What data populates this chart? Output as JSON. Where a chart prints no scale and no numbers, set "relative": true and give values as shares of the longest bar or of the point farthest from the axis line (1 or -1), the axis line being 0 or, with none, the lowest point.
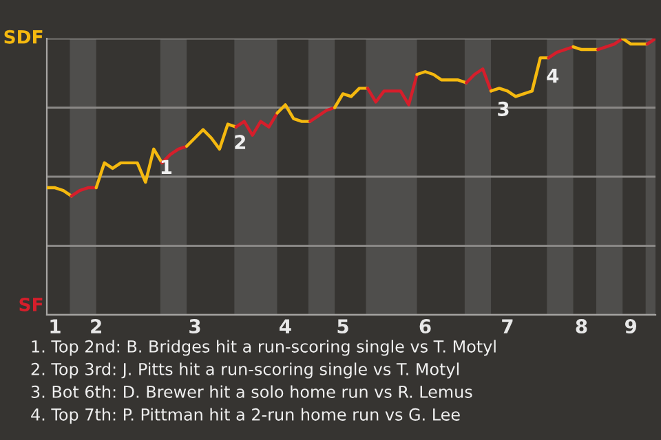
{
  "chart_data": {
    "type": "line",
    "relative": true,
    "legend": false,
    "categories": [
      null,
      "1",
      null,
      null,
      null,
      null,
      "2",
      null,
      null,
      null,
      null,
      null,
      null,
      null,
      null,
      null,
      null,
      null,
      "3",
      null,
      null,
      null,
      null,
      null,
      null,
      null,
      null,
      null,
      null,
      "4",
      null,
      null,
      null,
      null,
      null,
      null,
      "5",
      null,
      null,
      null,
      null,
      null,
      null,
      null,
      null,
      null,
      "6",
      null,
      null,
      null,
      null,
      null,
      null,
      null,
      null,
      null,
      "7",
      null,
      null,
      null,
      null,
      null,
      null,
      null,
      null,
      "8",
      null,
      null,
      null,
      null,
      null,
      "9",
      null,
      null,
      null
    ],
    "series": [
      {
        "name": "SDF",
        "color": "#f5b90f",
        "values": [
          0.46,
          0.46,
          0.45,
          0.43,
          null,
          null,
          null,
          null,
          null,
          null,
          null,
          null,
          null,
          null,
          null,
          null,
          null,
          null,
          null,
          null,
          null,
          null,
          null,
          null,
          null,
          null,
          null,
          null,
          null,
          null,
          null,
          null,
          null,
          null,
          null,
          null,
          null,
          null,
          null,
          null,
          null,
          null,
          null,
          null,
          null,
          null,
          null,
          null,
          null,
          null,
          null,
          null,
          null,
          null,
          null,
          null,
          null,
          null,
          null,
          null,
          null,
          null,
          null,
          null,
          null,
          null,
          null,
          null,
          null,
          null,
          null,
          null,
          null,
          null,
          null
        ]
      },
      {
        "name": "SF",
        "color": "#d61e2b",
        "values": [
          null,
          null,
          null,
          0.43,
          0.45,
          0.46,
          0.46,
          null,
          null,
          null,
          null,
          null,
          null,
          null,
          null,
          null,
          null,
          null,
          null,
          null,
          null,
          null,
          null,
          null,
          null,
          null,
          null,
          null,
          null,
          null,
          null,
          null,
          null,
          null,
          null,
          null,
          null,
          null,
          null,
          null,
          null,
          null,
          null,
          null,
          null,
          null,
          null,
          null,
          null,
          null,
          null,
          null,
          null,
          null,
          null,
          null,
          null,
          null,
          null,
          null,
          null,
          null,
          null,
          null,
          null,
          null,
          null,
          null,
          null,
          null,
          null,
          null,
          null,
          null,
          null
        ]
      },
      {
        "color": "#f5b90f",
        "values": [
          null,
          null,
          null,
          null,
          null,
          null,
          0.46,
          0.55,
          0.53,
          0.55,
          0.55,
          0.55,
          0.48,
          0.6,
          0.55,
          null,
          null,
          null,
          null,
          null,
          null,
          null,
          null,
          null,
          null,
          null,
          null,
          null,
          null,
          null,
          null,
          null,
          null,
          null,
          null,
          null,
          null,
          null,
          null,
          null,
          null,
          null,
          null,
          null,
          null,
          null,
          null,
          null,
          null,
          null,
          null,
          null,
          null,
          null,
          null,
          null,
          null,
          null,
          null,
          null,
          null,
          null,
          null,
          null,
          null,
          null,
          null,
          null,
          null,
          null,
          null,
          null,
          null,
          null,
          null
        ]
      },
      {
        "color": "#d61e2b",
        "values": [
          null,
          null,
          null,
          null,
          null,
          null,
          null,
          null,
          null,
          null,
          null,
          null,
          null,
          null,
          0.55,
          0.58,
          0.6,
          0.61,
          null,
          null,
          null,
          null,
          null,
          null,
          null,
          null,
          null,
          null,
          null,
          null,
          null,
          null,
          null,
          null,
          null,
          null,
          null,
          null,
          null,
          null,
          null,
          null,
          null,
          null,
          null,
          null,
          null,
          null,
          null,
          null,
          null,
          null,
          null,
          null,
          null,
          null,
          null,
          null,
          null,
          null,
          null,
          null,
          null,
          null,
          null,
          null,
          null,
          null,
          null,
          null,
          null,
          null,
          null,
          null,
          null
        ]
      },
      {
        "color": "#f5b90f",
        "values": [
          null,
          null,
          null,
          null,
          null,
          null,
          null,
          null,
          null,
          null,
          null,
          null,
          null,
          null,
          null,
          null,
          null,
          0.61,
          0.64,
          0.67,
          0.64,
          0.6,
          0.69,
          0.68,
          null,
          null,
          null,
          null,
          null,
          null,
          null,
          null,
          null,
          null,
          null,
          null,
          null,
          null,
          null,
          null,
          null,
          null,
          null,
          null,
          null,
          null,
          null,
          null,
          null,
          null,
          null,
          null,
          null,
          null,
          null,
          null,
          null,
          null,
          null,
          null,
          null,
          null,
          null,
          null,
          null,
          null,
          null,
          null,
          null,
          null,
          null,
          null,
          null,
          null,
          null
        ]
      },
      {
        "color": "#d61e2b",
        "values": [
          null,
          null,
          null,
          null,
          null,
          null,
          null,
          null,
          null,
          null,
          null,
          null,
          null,
          null,
          null,
          null,
          null,
          null,
          null,
          null,
          null,
          null,
          null,
          0.68,
          0.7,
          0.65,
          0.7,
          0.68,
          0.73,
          null,
          null,
          null,
          null,
          null,
          null,
          null,
          null,
          null,
          null,
          null,
          null,
          null,
          null,
          null,
          null,
          null,
          null,
          null,
          null,
          null,
          null,
          null,
          null,
          null,
          null,
          null,
          null,
          null,
          null,
          null,
          null,
          null,
          null,
          null,
          null,
          null,
          null,
          null,
          null,
          null,
          null,
          null,
          null,
          null,
          null
        ]
      },
      {
        "color": "#f5b90f",
        "values": [
          null,
          null,
          null,
          null,
          null,
          null,
          null,
          null,
          null,
          null,
          null,
          null,
          null,
          null,
          null,
          null,
          null,
          null,
          null,
          null,
          null,
          null,
          null,
          null,
          null,
          null,
          null,
          null,
          0.73,
          0.76,
          0.71,
          0.7,
          0.7,
          null,
          null,
          null,
          null,
          null,
          null,
          null,
          null,
          null,
          null,
          null,
          null,
          null,
          null,
          null,
          null,
          null,
          null,
          null,
          null,
          null,
          null,
          null,
          null,
          null,
          null,
          null,
          null,
          null,
          null,
          null,
          null,
          null,
          null,
          null,
          null,
          null,
          null,
          null,
          null,
          null,
          null
        ]
      },
      {
        "color": "#d61e2b",
        "values": [
          null,
          null,
          null,
          null,
          null,
          null,
          null,
          null,
          null,
          null,
          null,
          null,
          null,
          null,
          null,
          null,
          null,
          null,
          null,
          null,
          null,
          null,
          null,
          null,
          null,
          null,
          null,
          null,
          null,
          null,
          null,
          null,
          0.7,
          0.72,
          0.74,
          0.75,
          null,
          null,
          null,
          null,
          null,
          null,
          null,
          null,
          null,
          null,
          null,
          null,
          null,
          null,
          null,
          null,
          null,
          null,
          null,
          null,
          null,
          null,
          null,
          null,
          null,
          null,
          null,
          null,
          null,
          null,
          null,
          null,
          null,
          null,
          null,
          null,
          null,
          null,
          null
        ]
      },
      {
        "color": "#f5b90f",
        "values": [
          null,
          null,
          null,
          null,
          null,
          null,
          null,
          null,
          null,
          null,
          null,
          null,
          null,
          null,
          null,
          null,
          null,
          null,
          null,
          null,
          null,
          null,
          null,
          null,
          null,
          null,
          null,
          null,
          null,
          null,
          null,
          null,
          null,
          null,
          null,
          0.75,
          0.8,
          0.79,
          0.82,
          0.82,
          null,
          null,
          null,
          null,
          null,
          null,
          null,
          null,
          null,
          null,
          null,
          null,
          null,
          null,
          null,
          null,
          null,
          null,
          null,
          null,
          null,
          null,
          null,
          null,
          null,
          null,
          null,
          null,
          null,
          null,
          null,
          null,
          null,
          null,
          null
        ]
      },
      {
        "color": "#d61e2b",
        "values": [
          null,
          null,
          null,
          null,
          null,
          null,
          null,
          null,
          null,
          null,
          null,
          null,
          null,
          null,
          null,
          null,
          null,
          null,
          null,
          null,
          null,
          null,
          null,
          null,
          null,
          null,
          null,
          null,
          null,
          null,
          null,
          null,
          null,
          null,
          null,
          null,
          null,
          null,
          null,
          0.82,
          0.77,
          0.81,
          0.81,
          0.81,
          0.76,
          0.87,
          null,
          null,
          null,
          null,
          null,
          null,
          null,
          null,
          null,
          null,
          null,
          null,
          null,
          null,
          null,
          null,
          null,
          null,
          null,
          null,
          null,
          null,
          null,
          null,
          null,
          null,
          null,
          null,
          null
        ]
      },
      {
        "color": "#f5b90f",
        "values": [
          null,
          null,
          null,
          null,
          null,
          null,
          null,
          null,
          null,
          null,
          null,
          null,
          null,
          null,
          null,
          null,
          null,
          null,
          null,
          null,
          null,
          null,
          null,
          null,
          null,
          null,
          null,
          null,
          null,
          null,
          null,
          null,
          null,
          null,
          null,
          null,
          null,
          null,
          null,
          null,
          null,
          null,
          null,
          null,
          null,
          0.87,
          0.88,
          0.87,
          0.85,
          0.85,
          0.85,
          0.84,
          null,
          null,
          null,
          null,
          null,
          null,
          null,
          null,
          null,
          null,
          null,
          null,
          null,
          null,
          null,
          null,
          null,
          null,
          null,
          null,
          null,
          null,
          null
        ]
      },
      {
        "color": "#d61e2b",
        "values": [
          null,
          null,
          null,
          null,
          null,
          null,
          null,
          null,
          null,
          null,
          null,
          null,
          null,
          null,
          null,
          null,
          null,
          null,
          null,
          null,
          null,
          null,
          null,
          null,
          null,
          null,
          null,
          null,
          null,
          null,
          null,
          null,
          null,
          null,
          null,
          null,
          null,
          null,
          null,
          null,
          null,
          null,
          null,
          null,
          null,
          null,
          null,
          null,
          null,
          null,
          null,
          0.84,
          0.87,
          0.89,
          0.81,
          null,
          null,
          null,
          null,
          null,
          null,
          null,
          null,
          null,
          null,
          null,
          null,
          null,
          null,
          null,
          null,
          null,
          null,
          null,
          null
        ]
      },
      {
        "color": "#f5b90f",
        "values": [
          null,
          null,
          null,
          null,
          null,
          null,
          null,
          null,
          null,
          null,
          null,
          null,
          null,
          null,
          null,
          null,
          null,
          null,
          null,
          null,
          null,
          null,
          null,
          null,
          null,
          null,
          null,
          null,
          null,
          null,
          null,
          null,
          null,
          null,
          null,
          null,
          null,
          null,
          null,
          null,
          null,
          null,
          null,
          null,
          null,
          null,
          null,
          null,
          null,
          null,
          null,
          null,
          null,
          null,
          0.81,
          0.82,
          0.81,
          0.79,
          0.8,
          0.81,
          0.93,
          0.93,
          null,
          null,
          null,
          null,
          null,
          null,
          null,
          null,
          null,
          null,
          null,
          null,
          null
        ]
      },
      {
        "color": "#d61e2b",
        "values": [
          null,
          null,
          null,
          null,
          null,
          null,
          null,
          null,
          null,
          null,
          null,
          null,
          null,
          null,
          null,
          null,
          null,
          null,
          null,
          null,
          null,
          null,
          null,
          null,
          null,
          null,
          null,
          null,
          null,
          null,
          null,
          null,
          null,
          null,
          null,
          null,
          null,
          null,
          null,
          null,
          null,
          null,
          null,
          null,
          null,
          null,
          null,
          null,
          null,
          null,
          null,
          null,
          null,
          null,
          null,
          null,
          null,
          null,
          null,
          null,
          null,
          0.93,
          0.95,
          0.96,
          0.97,
          null,
          null,
          null,
          null,
          null,
          null,
          null,
          null,
          null,
          null
        ]
      },
      {
        "color": "#f5b90f",
        "values": [
          null,
          null,
          null,
          null,
          null,
          null,
          null,
          null,
          null,
          null,
          null,
          null,
          null,
          null,
          null,
          null,
          null,
          null,
          null,
          null,
          null,
          null,
          null,
          null,
          null,
          null,
          null,
          null,
          null,
          null,
          null,
          null,
          null,
          null,
          null,
          null,
          null,
          null,
          null,
          null,
          null,
          null,
          null,
          null,
          null,
          null,
          null,
          null,
          null,
          null,
          null,
          null,
          null,
          null,
          null,
          null,
          null,
          null,
          null,
          null,
          null,
          null,
          null,
          null,
          0.97,
          0.96,
          0.96,
          0.96,
          null,
          null,
          null,
          null,
          null,
          null,
          null
        ]
      },
      {
        "color": "#d61e2b",
        "values": [
          null,
          null,
          null,
          null,
          null,
          null,
          null,
          null,
          null,
          null,
          null,
          null,
          null,
          null,
          null,
          null,
          null,
          null,
          null,
          null,
          null,
          null,
          null,
          null,
          null,
          null,
          null,
          null,
          null,
          null,
          null,
          null,
          null,
          null,
          null,
          null,
          null,
          null,
          null,
          null,
          null,
          null,
          null,
          null,
          null,
          null,
          null,
          null,
          null,
          null,
          null,
          null,
          null,
          null,
          null,
          null,
          null,
          null,
          null,
          null,
          null,
          null,
          null,
          null,
          null,
          null,
          null,
          0.96,
          0.97,
          0.98,
          1,
          null,
          null,
          null,
          null
        ]
      },
      {
        "color": "#f5b90f",
        "values": [
          null,
          null,
          null,
          null,
          null,
          null,
          null,
          null,
          null,
          null,
          null,
          null,
          null,
          null,
          null,
          null,
          null,
          null,
          null,
          null,
          null,
          null,
          null,
          null,
          null,
          null,
          null,
          null,
          null,
          null,
          null,
          null,
          null,
          null,
          null,
          null,
          null,
          null,
          null,
          null,
          null,
          null,
          null,
          null,
          null,
          null,
          null,
          null,
          null,
          null,
          null,
          null,
          null,
          null,
          null,
          null,
          null,
          null,
          null,
          null,
          null,
          null,
          null,
          null,
          null,
          null,
          null,
          null,
          null,
          null,
          1,
          0.98,
          0.98,
          0.98,
          null
        ]
      },
      {
        "color": "#d61e2b",
        "values": [
          null,
          null,
          null,
          null,
          null,
          null,
          null,
          null,
          null,
          null,
          null,
          null,
          null,
          null,
          null,
          null,
          null,
          null,
          null,
          null,
          null,
          null,
          null,
          null,
          null,
          null,
          null,
          null,
          null,
          null,
          null,
          null,
          null,
          null,
          null,
          null,
          null,
          null,
          null,
          null,
          null,
          null,
          null,
          null,
          null,
          null,
          null,
          null,
          null,
          null,
          null,
          null,
          null,
          null,
          null,
          null,
          null,
          null,
          null,
          null,
          null,
          null,
          null,
          null,
          null,
          null,
          null,
          null,
          null,
          null,
          null,
          null,
          null,
          0.98,
          1
        ]
      }
    ],
    "grid": "y",
    "annotations": [
      {
        "text": "1",
        "y": 0.6
      },
      {
        "text": "2",
        "y": 0.69
      },
      {
        "text": "3",
        "y": 0.81
      },
      {
        "text": "4",
        "y": 0.93
      },
      "1. Top 2nd: B. Bridges hit a run-scoring single vs T. Motyl",
      "2. Top 3rd: J. Pitts hit a run-scoring single vs T. Motyl",
      "3. Bot 6th: D. Brewer hit a solo home run vs R. Lemus",
      "4. Top 7th: P. Pittman hit a 2-run home run vs G. Lee"
    ]
  }
}
